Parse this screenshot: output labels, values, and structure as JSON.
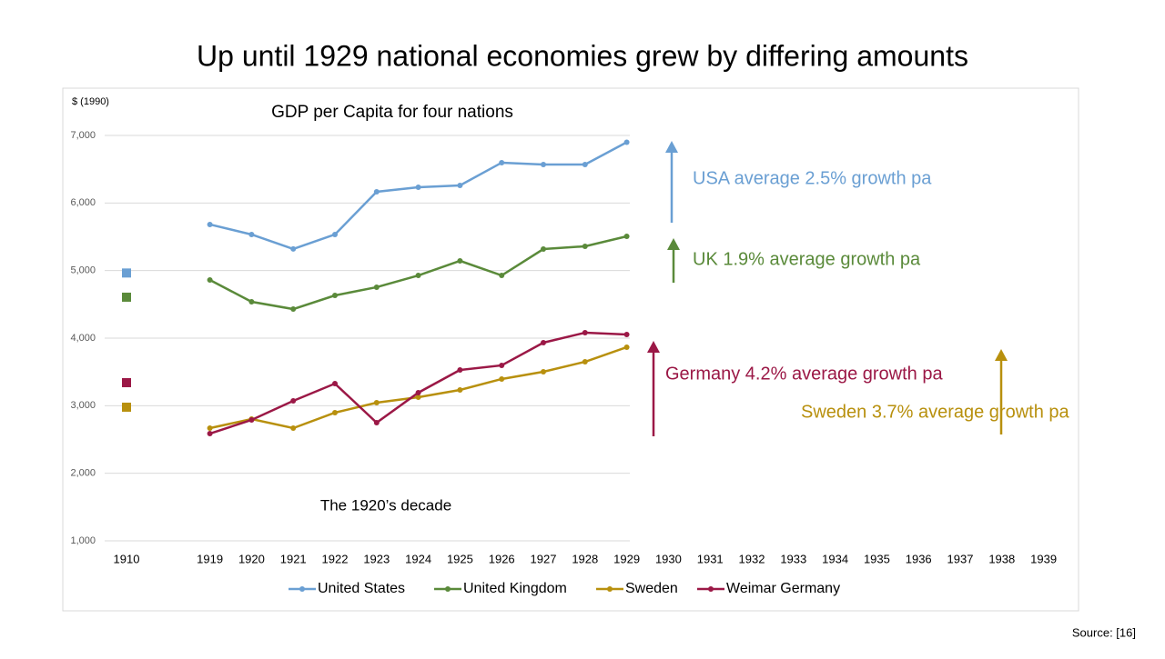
{
  "chart_data": {
    "type": "line",
    "page_title": "Up until 1929 national economies grew by differing amounts",
    "title": "GDP per Capita for four nations",
    "ylabel": "$ (1990)",
    "xlabel": "The 1920’s decade",
    "source": "Source: [16]",
    "categories": [
      "1910",
      null,
      "1919",
      "1920",
      "1921",
      "1922",
      "1923",
      "1924",
      "1925",
      "1926",
      "1927",
      "1928",
      "1929",
      "1930",
      "1931",
      "1932",
      "1933",
      "1934",
      "1935",
      "1936",
      "1937",
      "1938",
      "1939"
    ],
    "series": [
      {
        "name": "United States",
        "color": "#6a9fd3",
        "values": [
          4964,
          null,
          5682,
          5534,
          5320,
          5534,
          6166,
          6233,
          6260,
          6597,
          6570,
          6570,
          6899,
          null,
          null,
          null,
          null,
          null,
          null,
          null,
          null,
          null,
          null
        ]
      },
      {
        "name": "United Kingdom",
        "color": "#5a8a3a",
        "values": [
          4606,
          null,
          4861,
          4538,
          4430,
          4632,
          4754,
          4928,
          5144,
          4928,
          5318,
          5359,
          5507,
          null,
          null,
          null,
          null,
          null,
          null,
          null,
          null,
          null,
          null
        ]
      },
      {
        "name": "Sweden",
        "color": "#b8900e",
        "values": [
          2978,
          null,
          2668,
          2803,
          2668,
          2897,
          3045,
          3126,
          3233,
          3395,
          3502,
          3650,
          3866,
          null,
          null,
          null,
          null,
          null,
          null,
          null,
          null,
          null,
          null
        ]
      },
      {
        "name": "Weimar Germany",
        "color": "#9b1846",
        "values": [
          3341,
          null,
          2587,
          2789,
          3072,
          3327,
          2749,
          3193,
          3529,
          3597,
          3933,
          4081,
          4054,
          null,
          null,
          null,
          null,
          null,
          null,
          null,
          null,
          null,
          null
        ]
      }
    ],
    "ylim": [
      1000,
      7000
    ],
    "yticks": [
      {
        "value": 1000,
        "label": "1,000"
      },
      {
        "value": 2000,
        "label": "2,000"
      },
      {
        "value": 3000,
        "label": "3,000"
      },
      {
        "value": 4000,
        "label": "4,000"
      },
      {
        "value": 5000,
        "label": "5,000"
      },
      {
        "value": 6000,
        "label": "6,000"
      },
      {
        "value": 7000,
        "label": "7,000"
      }
    ],
    "grid": true,
    "legend": "bottom",
    "annotations": [
      {
        "text": "USA average 2.5% growth pa",
        "color": "#6a9fd3"
      },
      {
        "text": "UK 1.9% average growth pa",
        "color": "#5a8a3a"
      },
      {
        "text": "Germany  4.2% average growth pa",
        "color": "#9b1846"
      },
      {
        "text": "Sweden 3.7% average  growth pa",
        "color": "#b8900e"
      }
    ]
  }
}
